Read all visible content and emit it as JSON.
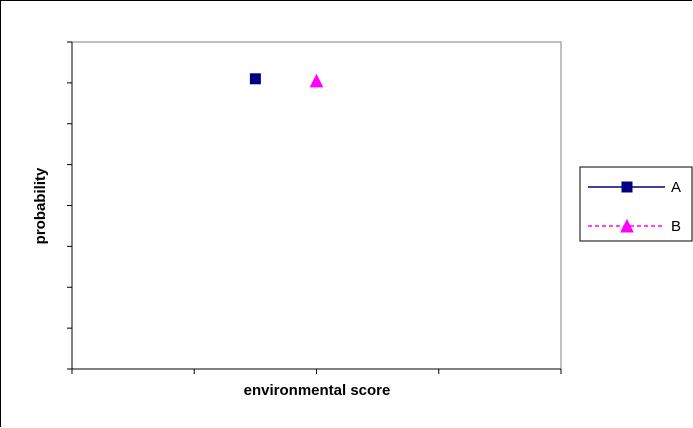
{
  "chart_data": {
    "type": "scatter",
    "title": "",
    "xlabel": "environmental score",
    "ylabel": "probability",
    "xlim": [
      0,
      4
    ],
    "ylim": [
      0,
      8
    ],
    "x_ticks": 4,
    "y_ticks": 8,
    "grid": false,
    "legend_position": "right",
    "series": [
      {
        "name": "A",
        "color": "#000080",
        "marker": "square",
        "line": "solid",
        "points": [
          {
            "x": 1.5,
            "y": 7.1
          }
        ]
      },
      {
        "name": "B",
        "color": "#FF00FF",
        "marker": "triangle",
        "line": "dashed",
        "points": [
          {
            "x": 2.0,
            "y": 7.05
          }
        ]
      }
    ]
  }
}
